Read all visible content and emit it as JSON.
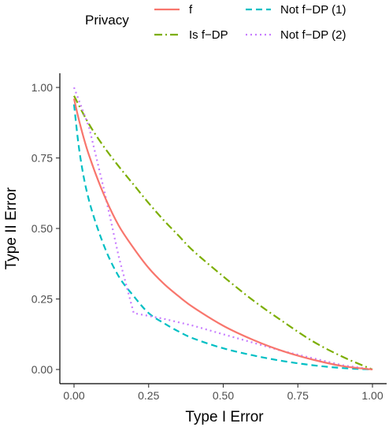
{
  "chart_data": {
    "type": "line",
    "xlabel": "Type I Error",
    "ylabel": "Type II Error",
    "xlim": [
      0,
      1
    ],
    "ylim": [
      0,
      1
    ],
    "x_ticks": [
      "0.00",
      "0.25",
      "0.50",
      "0.75",
      "1.00"
    ],
    "y_ticks": [
      "0.00",
      "0.25",
      "0.50",
      "0.75",
      "1.00"
    ],
    "grid": false,
    "legend": {
      "title": "Privacy",
      "position": "top"
    },
    "series": [
      {
        "name": "f",
        "color": "#F8766D",
        "dash": "solid",
        "x": [
          0,
          0.02,
          0.05,
          0.1,
          0.15,
          0.2,
          0.25,
          0.3,
          0.35,
          0.4,
          0.5,
          0.6,
          0.7,
          0.8,
          0.9,
          1.0
        ],
        "y": [
          0.96,
          0.87,
          0.76,
          0.62,
          0.51,
          0.43,
          0.36,
          0.305,
          0.26,
          0.22,
          0.155,
          0.105,
          0.065,
          0.035,
          0.012,
          0
        ]
      },
      {
        "name": "Is f−DP",
        "color": "#7CAE00",
        "dash": "dashdot",
        "x": [
          0,
          0.05,
          0.1,
          0.15,
          0.2,
          0.25,
          0.3,
          0.35,
          0.4,
          0.5,
          0.6,
          0.7,
          0.8,
          0.9,
          1.0
        ],
        "y": [
          0.97,
          0.87,
          0.79,
          0.72,
          0.655,
          0.59,
          0.53,
          0.475,
          0.42,
          0.33,
          0.245,
          0.17,
          0.1,
          0.045,
          0
        ]
      },
      {
        "name": "Not f−DP (1)",
        "color": "#00BFC4",
        "dash": "dashed",
        "x": [
          0,
          0.02,
          0.05,
          0.1,
          0.15,
          0.2,
          0.25,
          0.3,
          0.35,
          0.4,
          0.5,
          0.6,
          0.7,
          0.8,
          0.9,
          1.0
        ],
        "y": [
          0.94,
          0.76,
          0.6,
          0.44,
          0.33,
          0.26,
          0.2,
          0.165,
          0.135,
          0.11,
          0.075,
          0.05,
          0.03,
          0.015,
          0.005,
          0
        ]
      },
      {
        "name": "Not f−DP (2)",
        "color": "#C77CFF",
        "dash": "dotted",
        "x": [
          0,
          0.05,
          0.1,
          0.15,
          0.2,
          0.3,
          0.4,
          0.5,
          0.6,
          0.7,
          0.8,
          0.9,
          1.0
        ],
        "y": [
          1.0,
          0.86,
          0.64,
          0.4,
          0.2,
          0.18,
          0.155,
          0.125,
          0.095,
          0.065,
          0.04,
          0.015,
          0
        ]
      }
    ]
  }
}
